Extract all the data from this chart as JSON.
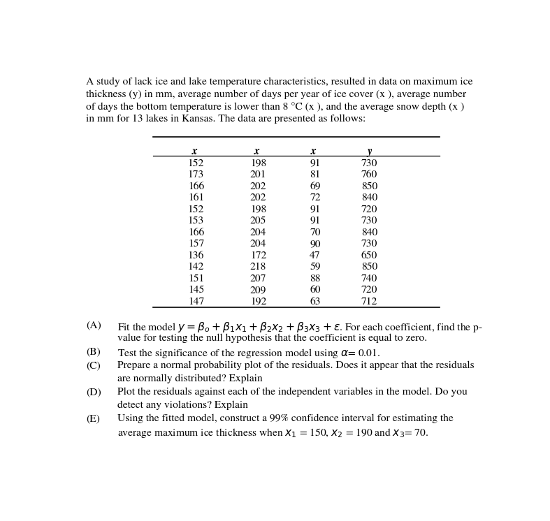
{
  "intro_lines": [
    "A study of lack ice and lake temperature characteristics, resulted in data on maximum ice",
    "thickness (y) in mm, average number of days per year of ice cover (x₁), average number",
    "of days the bottom temperature is lower than 8 °C (x₂), and the average snow depth (x₃)",
    "in mm for 13 lakes in Kansas. The data are presented as follows:"
  ],
  "col_headers": [
    "x₁",
    "x₂",
    "x₃",
    "y"
  ],
  "table_data": [
    [
      152,
      198,
      91,
      730
    ],
    [
      173,
      201,
      81,
      760
    ],
    [
      166,
      202,
      69,
      850
    ],
    [
      161,
      202,
      72,
      840
    ],
    [
      152,
      198,
      91,
      720
    ],
    [
      153,
      205,
      91,
      730
    ],
    [
      166,
      204,
      70,
      840
    ],
    [
      157,
      204,
      90,
      730
    ],
    [
      136,
      172,
      47,
      650
    ],
    [
      142,
      218,
      59,
      850
    ],
    [
      151,
      207,
      88,
      740
    ],
    [
      145,
      209,
      60,
      720
    ],
    [
      147,
      192,
      63,
      712
    ]
  ],
  "q_labels": [
    "(A)",
    "(B)",
    "(C)",
    "(D)",
    "(E)"
  ],
  "q_lines": [
    [
      "Fit the model $y = \\beta_o + \\beta_1 x_1 + \\beta_2 x_2 + \\beta_3 x_3 + \\varepsilon$. For each coefficient, find the p-",
      "value for testing the null hypothesis that the coefficient is equal to zero."
    ],
    [
      "Test the significance of the regression model using $\\alpha$= 0.01."
    ],
    [
      "Prepare a normal probability plot of the residuals. Does it appear that the residuals",
      "are normally distributed? Explain"
    ],
    [
      "Plot the residuals against each of the independent variables in the model. Do you",
      "detect any violations? Explain"
    ],
    [
      "Using the fitted model, construct a 99% confidence interval for estimating the",
      "average maximum ice thickness when $x_1$ = 150, $x_2$ = 190 and $x_3$= 70."
    ]
  ],
  "bg_color": "#ffffff",
  "text_color": "#000000",
  "font_size": 11.2,
  "font_family": "STIXGeneral"
}
